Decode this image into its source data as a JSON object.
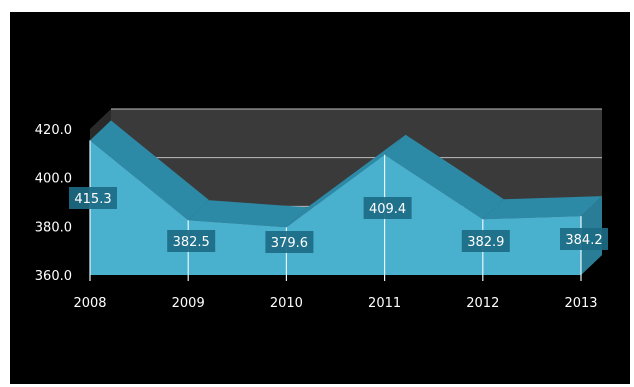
{
  "chart_data": {
    "type": "area",
    "title": "",
    "xlabel": "",
    "ylabel": "",
    "categories": [
      "2008",
      "2009",
      "2010",
      "2011",
      "2012",
      "2013"
    ],
    "values": [
      415.3,
      382.5,
      379.6,
      409.4,
      382.9,
      384.2
    ],
    "data_labels": [
      "415.3",
      "382.5",
      "379.6",
      "409.4",
      "382.9",
      "384.2"
    ],
    "ylim": [
      360,
      420
    ],
    "yticks": [
      "360.0",
      "380.0",
      "400.0",
      "420.0"
    ],
    "grid": true,
    "legend": "none",
    "style": "3d",
    "colors": {
      "fill": "#49b0ce",
      "top": "#2d8aa7",
      "label_bg": "#1d6b86",
      "wall": "#3a3a3a",
      "background": "#000000",
      "text": "#ffffff"
    }
  }
}
